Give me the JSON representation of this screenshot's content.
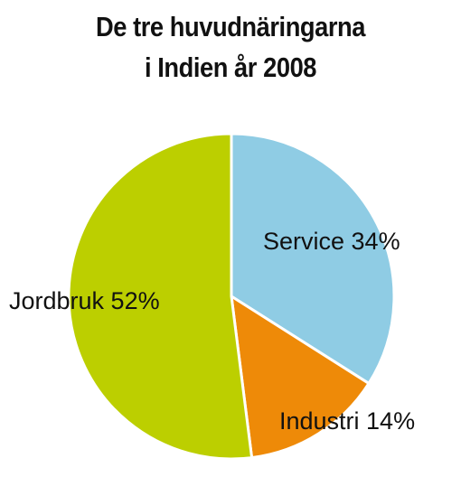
{
  "chart_data": {
    "type": "pie",
    "title": [
      "De tre huvudnäringarna",
      "i Indien år 2008"
    ],
    "slices": [
      {
        "label": "Service 34%",
        "value": 34,
        "color": "#8fcce4"
      },
      {
        "label": "Industri 14%",
        "value": 14,
        "color": "#ee8a08"
      },
      {
        "label": "Jordbruk 52%",
        "value": 52,
        "color": "#bccf00"
      }
    ],
    "start": "12 o'clock",
    "direction": "clockwise"
  }
}
